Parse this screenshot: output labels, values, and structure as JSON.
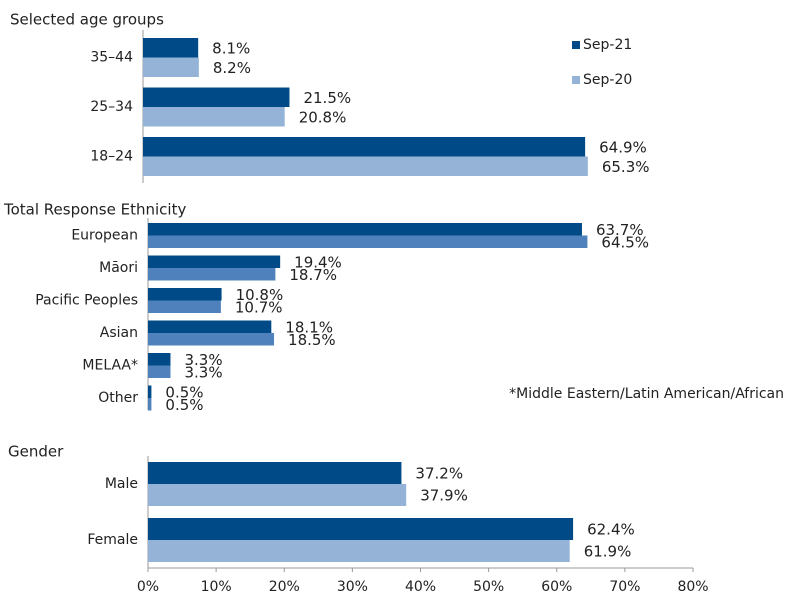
{
  "chart_data": [
    {
      "type": "bar",
      "orientation": "horizontal",
      "title": "Selected age groups",
      "categories": [
        "35–44",
        "25–34",
        "18–24"
      ],
      "series": [
        {
          "name": "Sep-21",
          "color": "#004b87",
          "values": [
            8.1,
            21.5,
            64.9
          ],
          "value_labels": [
            "8.1%",
            "21.5%",
            "64.9%"
          ]
        },
        {
          "name": "Sep-20",
          "color": "#95b3d7",
          "values": [
            8.2,
            20.8,
            65.3
          ],
          "value_labels": [
            "8.2%",
            "20.8%",
            "65.3%"
          ]
        }
      ],
      "legend": "upper right"
    },
    {
      "type": "bar",
      "orientation": "horizontal",
      "title": "Total Response Ethnicity",
      "categories": [
        "European",
        "Māori",
        "Pacific Peoples",
        "Asian",
        "MELAA*",
        "Other"
      ],
      "series": [
        {
          "color": "#004b87",
          "values": [
            63.7,
            19.4,
            10.8,
            18.1,
            3.3,
            0.5
          ],
          "value_labels": [
            "63.7%",
            "19.4%",
            "10.8%",
            "18.1%",
            "3.3%",
            "0.5%"
          ]
        },
        {
          "color": "#4f81bd",
          "values": [
            64.5,
            18.7,
            10.7,
            18.5,
            3.3,
            0.5
          ],
          "value_labels": [
            "64.5%",
            "18.7%",
            "10.7%",
            "18.5%",
            "3.3%",
            "0.5%"
          ]
        }
      ],
      "annotation": "*Middle Eastern/Latin American/African"
    },
    {
      "type": "bar",
      "orientation": "horizontal",
      "title": "Gender",
      "categories": [
        "Male",
        "Female"
      ],
      "series": [
        {
          "color": "#004b87",
          "values": [
            37.2,
            62.4
          ],
          "value_labels": [
            "37.2%",
            "62.4%"
          ]
        },
        {
          "color": "#95b3d7",
          "values": [
            37.9,
            61.9
          ],
          "value_labels": [
            "37.9%",
            "61.9%"
          ]
        }
      ],
      "xlim": [
        0,
        80
      ],
      "xticks": [
        {
          "value": 0,
          "label": "0%"
        },
        {
          "value": 10,
          "label": "10%"
        },
        {
          "value": 20,
          "label": "20%"
        },
        {
          "value": 30,
          "label": "30%"
        },
        {
          "value": 40,
          "label": "40%"
        },
        {
          "value": 50,
          "label": "50%"
        },
        {
          "value": 60,
          "label": "60%"
        },
        {
          "value": 70,
          "label": "70%"
        },
        {
          "value": 80,
          "label": "80%"
        }
      ]
    }
  ]
}
